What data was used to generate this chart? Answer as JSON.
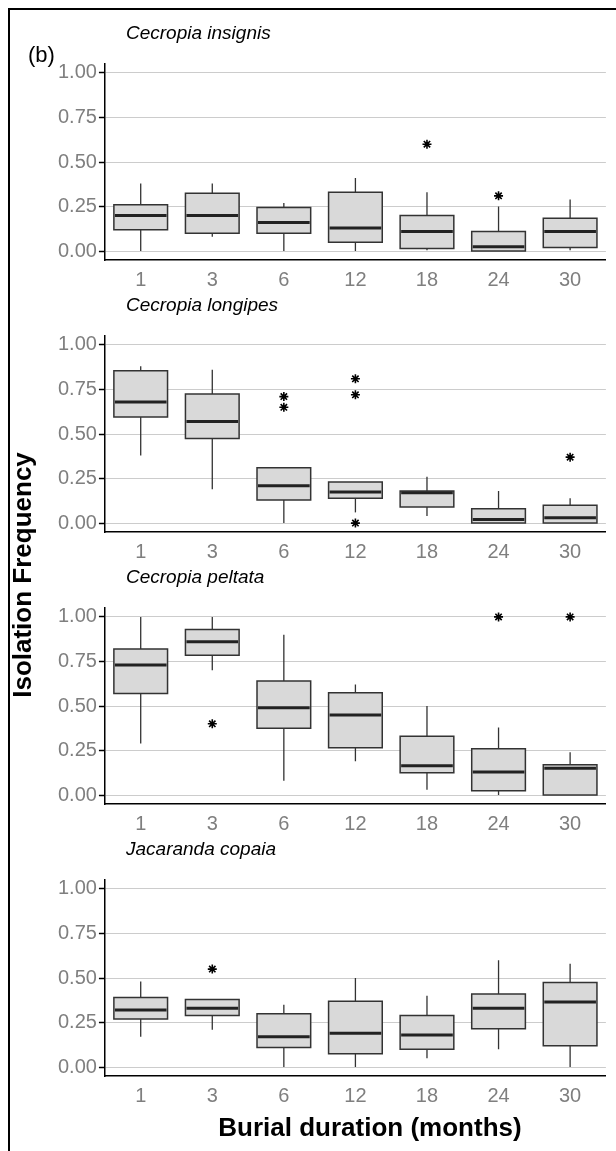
{
  "chart_data": [
    {
      "type": "box",
      "title": "Cecropia insignis",
      "annotations": [
        "(b)"
      ],
      "categories": [
        "1",
        "3",
        "6",
        "12",
        "18",
        "24",
        "30"
      ],
      "ylim": [
        -0.05,
        1.05
      ],
      "yticks": [
        {
          "value": 0,
          "label": "0.00"
        },
        {
          "value": 0.25,
          "label": "0.25"
        },
        {
          "value": 0.5,
          "label": "0.50"
        },
        {
          "value": 0.75,
          "label": "0.75"
        },
        {
          "value": 1,
          "label": "1.00"
        }
      ],
      "grid": "y",
      "marker": "star",
      "series": [
        {
          "color": "#d9d9d9",
          "boxes": [
            {
              "low": 0,
              "q1": 0.12,
              "median": 0.2,
              "q3": 0.26,
              "high": 0.38
            },
            {
              "low": 0.08,
              "q1": 0.1,
              "median": 0.2,
              "q3": 0.325,
              "high": 0.38
            },
            {
              "low": 0,
              "q1": 0.1,
              "median": 0.16,
              "q3": 0.245,
              "high": 0.27
            },
            {
              "low": 0,
              "q1": 0.05,
              "median": 0.13,
              "q3": 0.33,
              "high": 0.41
            },
            {
              "low": 0.005,
              "q1": 0.015,
              "median": 0.11,
              "q3": 0.2,
              "high": 0.33,
              "outliers": [
                0.6
              ]
            },
            {
              "low": 0,
              "q1": 0,
              "median": 0.025,
              "q3": 0.11,
              "high": 0.25,
              "outliers": [
                0.31
              ]
            },
            {
              "low": 0.005,
              "q1": 0.02,
              "median": 0.11,
              "q3": 0.185,
              "high": 0.29
            }
          ]
        }
      ]
    },
    {
      "type": "box",
      "title": "Cecropia longipes",
      "ylabel": "Isolation Frequency",
      "categories": [
        "1",
        "3",
        "6",
        "12",
        "18",
        "24",
        "30"
      ],
      "ylim": [
        -0.05,
        1.05
      ],
      "yticks": [
        {
          "value": 0,
          "label": "0.00"
        },
        {
          "value": 0.25,
          "label": "0.25"
        },
        {
          "value": 0.5,
          "label": "0.50"
        },
        {
          "value": 0.75,
          "label": "0.75"
        },
        {
          "value": 1,
          "label": "1.00"
        }
      ],
      "grid": "y",
      "marker": "star",
      "series": [
        {
          "color": "#d9d9d9",
          "boxes": [
            {
              "low": 0.38,
              "q1": 0.595,
              "median": 0.68,
              "q3": 0.855,
              "high": 0.88
            },
            {
              "low": 0.19,
              "q1": 0.475,
              "median": 0.57,
              "q3": 0.725,
              "high": 0.86
            },
            {
              "low": 0,
              "q1": 0.13,
              "median": 0.21,
              "q3": 0.31,
              "high": 0.31,
              "outliers": [
                0.71,
                0.65
              ]
            },
            {
              "low": 0.06,
              "q1": 0.14,
              "median": 0.175,
              "q3": 0.23,
              "high": 0.23,
              "outliers": [
                0.81,
                0.72,
                0
              ]
            },
            {
              "low": 0.04,
              "q1": 0.09,
              "median": 0.17,
              "q3": 0.18,
              "high": 0.26
            },
            {
              "low": 0,
              "q1": 0,
              "median": 0.02,
              "q3": 0.08,
              "high": 0.18
            },
            {
              "low": 0,
              "q1": 0,
              "median": 0.03,
              "q3": 0.1,
              "high": 0.14,
              "outliers": [
                0.37
              ]
            }
          ]
        }
      ]
    },
    {
      "type": "box",
      "title": "Cecropia peltata",
      "categories": [
        "1",
        "3",
        "6",
        "12",
        "18",
        "24",
        "30"
      ],
      "ylim": [
        -0.05,
        1.05
      ],
      "yticks": [
        {
          "value": 0,
          "label": "0.00"
        },
        {
          "value": 0.25,
          "label": "0.25"
        },
        {
          "value": 0.5,
          "label": "0.50"
        },
        {
          "value": 0.75,
          "label": "0.75"
        },
        {
          "value": 1,
          "label": "1.00"
        }
      ],
      "grid": "y",
      "marker": "star",
      "series": [
        {
          "color": "#d9d9d9",
          "boxes": [
            {
              "low": 0.29,
              "q1": 0.57,
              "median": 0.73,
              "q3": 0.82,
              "high": 1
            },
            {
              "low": 0.7,
              "q1": 0.785,
              "median": 0.86,
              "q3": 0.93,
              "high": 1,
              "outliers": [
                0.4
              ]
            },
            {
              "low": 0.08,
              "q1": 0.375,
              "median": 0.49,
              "q3": 0.64,
              "high": 0.9
            },
            {
              "low": 0.19,
              "q1": 0.265,
              "median": 0.45,
              "q3": 0.575,
              "high": 0.62
            },
            {
              "low": 0.03,
              "q1": 0.125,
              "median": 0.165,
              "q3": 0.33,
              "high": 0.5
            },
            {
              "low": 0,
              "q1": 0.025,
              "median": 0.13,
              "q3": 0.26,
              "high": 0.38,
              "outliers": [
                1
              ]
            },
            {
              "low": 0,
              "q1": 0,
              "median": 0.15,
              "q3": 0.17,
              "high": 0.24,
              "outliers": [
                1
              ]
            }
          ]
        }
      ]
    },
    {
      "type": "box",
      "title": "Jacaranda copaia",
      "xlabel": "Burial duration (months)",
      "categories": [
        "1",
        "3",
        "6",
        "12",
        "18",
        "24",
        "30"
      ],
      "ylim": [
        -0.05,
        1.05
      ],
      "yticks": [
        {
          "value": 0,
          "label": "0.00"
        },
        {
          "value": 0.25,
          "label": "0.25"
        },
        {
          "value": 0.5,
          "label": "0.50"
        },
        {
          "value": 0.75,
          "label": "0.75"
        },
        {
          "value": 1,
          "label": "1.00"
        }
      ],
      "grid": "y",
      "marker": "star",
      "series": [
        {
          "color": "#d9d9d9",
          "boxes": [
            {
              "low": 0.17,
              "q1": 0.27,
              "median": 0.32,
              "q3": 0.39,
              "high": 0.48
            },
            {
              "low": 0.21,
              "q1": 0.29,
              "median": 0.33,
              "q3": 0.38,
              "high": 0.38,
              "outliers": [
                0.55
              ]
            },
            {
              "low": 0,
              "q1": 0.11,
              "median": 0.17,
              "q3": 0.3,
              "high": 0.35
            },
            {
              "low": 0,
              "q1": 0.075,
              "median": 0.19,
              "q3": 0.37,
              "high": 0.5
            },
            {
              "low": 0.05,
              "q1": 0.1,
              "median": 0.18,
              "q3": 0.29,
              "high": 0.4
            },
            {
              "low": 0.1,
              "q1": 0.215,
              "median": 0.33,
              "q3": 0.41,
              "high": 0.6
            },
            {
              "low": 0,
              "q1": 0.12,
              "median": 0.365,
              "q3": 0.475,
              "high": 0.58
            }
          ]
        }
      ]
    }
  ]
}
